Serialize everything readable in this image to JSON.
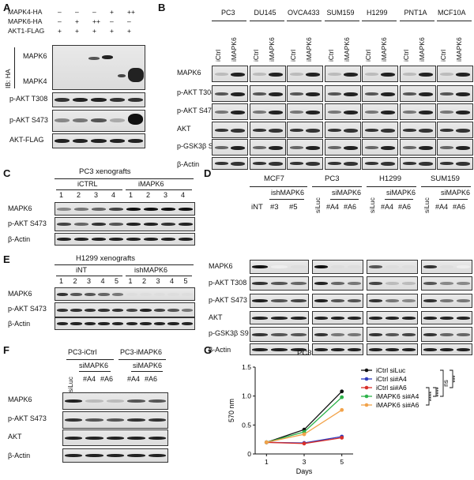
{
  "panel_letters": {
    "a": "A",
    "b": "B",
    "c": "C",
    "d": "D",
    "e": "E",
    "f": "F",
    "g": "G"
  },
  "panel_a": {
    "rows": [
      {
        "label": "MAPK4-HA",
        "marks": [
          "–",
          "–",
          "–",
          "+",
          "++"
        ]
      },
      {
        "label": "MAPK6-HA",
        "marks": [
          "–",
          "+",
          "++",
          "–",
          "–"
        ]
      },
      {
        "label": "AKT1-FLAG",
        "marks": [
          "+",
          "+",
          "+",
          "+",
          "+"
        ]
      }
    ],
    "ib_label": "IB: HA",
    "blot_labels": {
      "mapk6": "MAPK6",
      "mapk4": "MAPK4",
      "pakt308": "p-AKT T308",
      "pakt473": "p-AKT S473",
      "aktflag": "AKT-FLAG"
    }
  },
  "panel_b": {
    "cell_lines": [
      "PC3",
      "DU145",
      "OVCA433",
      "SUM159",
      "H1299",
      "PNT1A",
      "MCF10A"
    ],
    "lane_labels": [
      "iCtrl",
      "iMAPK6"
    ],
    "rows": [
      "MAPK6",
      "p-AKT T308",
      "p-AKT S473",
      "AKT",
      "p-GSK3β S9",
      "β-Actin"
    ]
  },
  "panel_c": {
    "title": "PC3 xenografts",
    "groups": [
      "iCTRL",
      "iMAPK6"
    ],
    "lanes": [
      "1",
      "2",
      "3",
      "4",
      "1",
      "2",
      "3",
      "4"
    ],
    "rows": [
      "MAPK6",
      "p-AKT S473",
      "β-Actin"
    ]
  },
  "panel_d": {
    "groups": [
      {
        "name": "MCF7",
        "sub": "ishMAPK6",
        "lanes": [
          "iNT",
          "#3",
          "#5"
        ]
      },
      {
        "name": "PC3",
        "sub": "siMAPK6",
        "lanes": [
          "siLuc",
          "#A4",
          "#A6"
        ]
      },
      {
        "name": "H1299",
        "sub": "siMAPK6",
        "lanes": [
          "siLuc",
          "#A4",
          "#A6"
        ]
      },
      {
        "name": "SUM159",
        "sub": "siMAPK6",
        "lanes": [
          "siLuc",
          "#A4",
          "#A6"
        ]
      }
    ],
    "rows": [
      "MAPK6",
      "p-AKT T308",
      "p-AKT S473",
      "AKT",
      "p-GSK3β S9",
      "β-Actin"
    ]
  },
  "panel_e": {
    "title": "H1299 xenografts",
    "groups": [
      "iNT",
      "ishMAPK6"
    ],
    "lanes": [
      "1",
      "2",
      "3",
      "4",
      "5",
      "1",
      "2",
      "3",
      "4",
      "5"
    ],
    "rows": [
      "MAPK6",
      "p-AKT S473",
      "β-Actin"
    ]
  },
  "panel_f": {
    "groups": [
      "PC3-iCtrl",
      "PC3-iMAPK6"
    ],
    "sub": [
      "siMAPK6",
      "siMAPK6"
    ],
    "lanes": [
      "siLuc",
      "#A4",
      "#A6",
      "#A4",
      "#A6"
    ],
    "rows": [
      "MAPK6",
      "p-AKT S473",
      "AKT",
      "β-Actin"
    ]
  },
  "chart_data": {
    "type": "line",
    "title": "PC3",
    "xlabel": "Days",
    "ylabel": "570 nm",
    "x": [
      1,
      3,
      5
    ],
    "xticks": [
      "1",
      "3",
      "5"
    ],
    "ylim": [
      0,
      1.5
    ],
    "yticks": [
      "0",
      "0.5",
      "1.0",
      "1.5"
    ],
    "series": [
      {
        "name": "iCtrl siLuc",
        "color": "#111111",
        "values": [
          0.2,
          0.42,
          1.08
        ]
      },
      {
        "name": "iCtrl si#A4",
        "color": "#2f3dbf",
        "values": [
          0.2,
          0.19,
          0.3
        ]
      },
      {
        "name": "iCtrl si#A6",
        "color": "#d8302b",
        "values": [
          0.2,
          0.18,
          0.28
        ]
      },
      {
        "name": "iMAPK6 si#A4",
        "color": "#2db34a",
        "values": [
          0.2,
          0.38,
          0.98
        ]
      },
      {
        "name": "iMAPK6 si#A6",
        "color": "#f2a34a",
        "values": [
          0.2,
          0.34,
          0.76
        ]
      }
    ],
    "significance": [
      "****",
      "****",
      "ns",
      "***"
    ]
  }
}
